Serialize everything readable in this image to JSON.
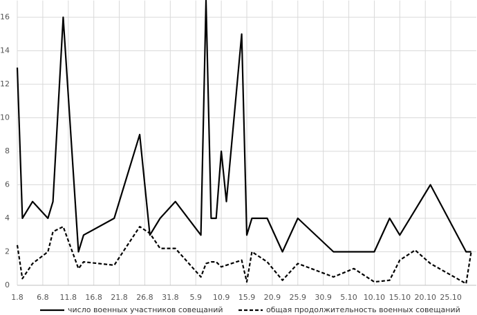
{
  "chart_data": {
    "type": "line",
    "x": [
      "1.8",
      "2.8",
      "4.8",
      "7.8",
      "8.8",
      "10.8",
      "13.8",
      "14.8",
      "20.8",
      "25.8",
      "27.8",
      "29.8",
      "1.9",
      "6.9",
      "7.9",
      "8.9",
      "9.9",
      "10.9",
      "11.9",
      "14.9",
      "15.9",
      "16.9",
      "19.9",
      "22.9",
      "25.9",
      "2.10",
      "6.10",
      "10.10",
      "13.10",
      "15.10",
      "18.10",
      "21.10",
      "28.10",
      "29.10"
    ],
    "series": [
      {
        "name": "число военных участников совещаний",
        "color": "#000000",
        "style": "solid",
        "values": [
          13,
          4,
          5,
          4,
          5,
          16,
          2,
          3,
          4,
          9,
          3,
          4,
          5,
          3,
          17,
          4,
          4,
          8,
          5,
          15,
          3,
          4,
          4,
          2,
          4,
          2,
          2,
          2,
          4,
          3,
          4.5,
          6,
          2,
          2
        ]
      },
      {
        "name": "общая продолжительность военных совещаний",
        "color": "#000000",
        "style": "dashed",
        "values": [
          2.4,
          0.4,
          1.3,
          2.0,
          3.2,
          3.5,
          1.0,
          1.4,
          1.2,
          3.5,
          3.1,
          2.2,
          2.2,
          0.5,
          1.3,
          1.4,
          1.4,
          1.1,
          1.2,
          1.5,
          0.2,
          2.0,
          1.4,
          0.3,
          1.3,
          0.5,
          1.0,
          0.2,
          0.3,
          1.5,
          2.1,
          1.3,
          0.1,
          2.0
        ]
      }
    ],
    "xlim": [
      "1.8",
      "30.10"
    ],
    "xticks": [
      "1.8",
      "6.8",
      "11.8",
      "16.8",
      "21.8",
      "26.8",
      "31.8",
      "5.9",
      "10.9",
      "15.9",
      "20.9",
      "25.9",
      "30.9",
      "5.10",
      "10.10",
      "15.10",
      "20.10",
      "25.10"
    ],
    "ylim": [
      0,
      17
    ],
    "yticks": [
      0,
      2,
      4,
      6,
      8,
      10,
      12,
      14,
      16
    ],
    "grid": true,
    "legend": "bottom"
  }
}
